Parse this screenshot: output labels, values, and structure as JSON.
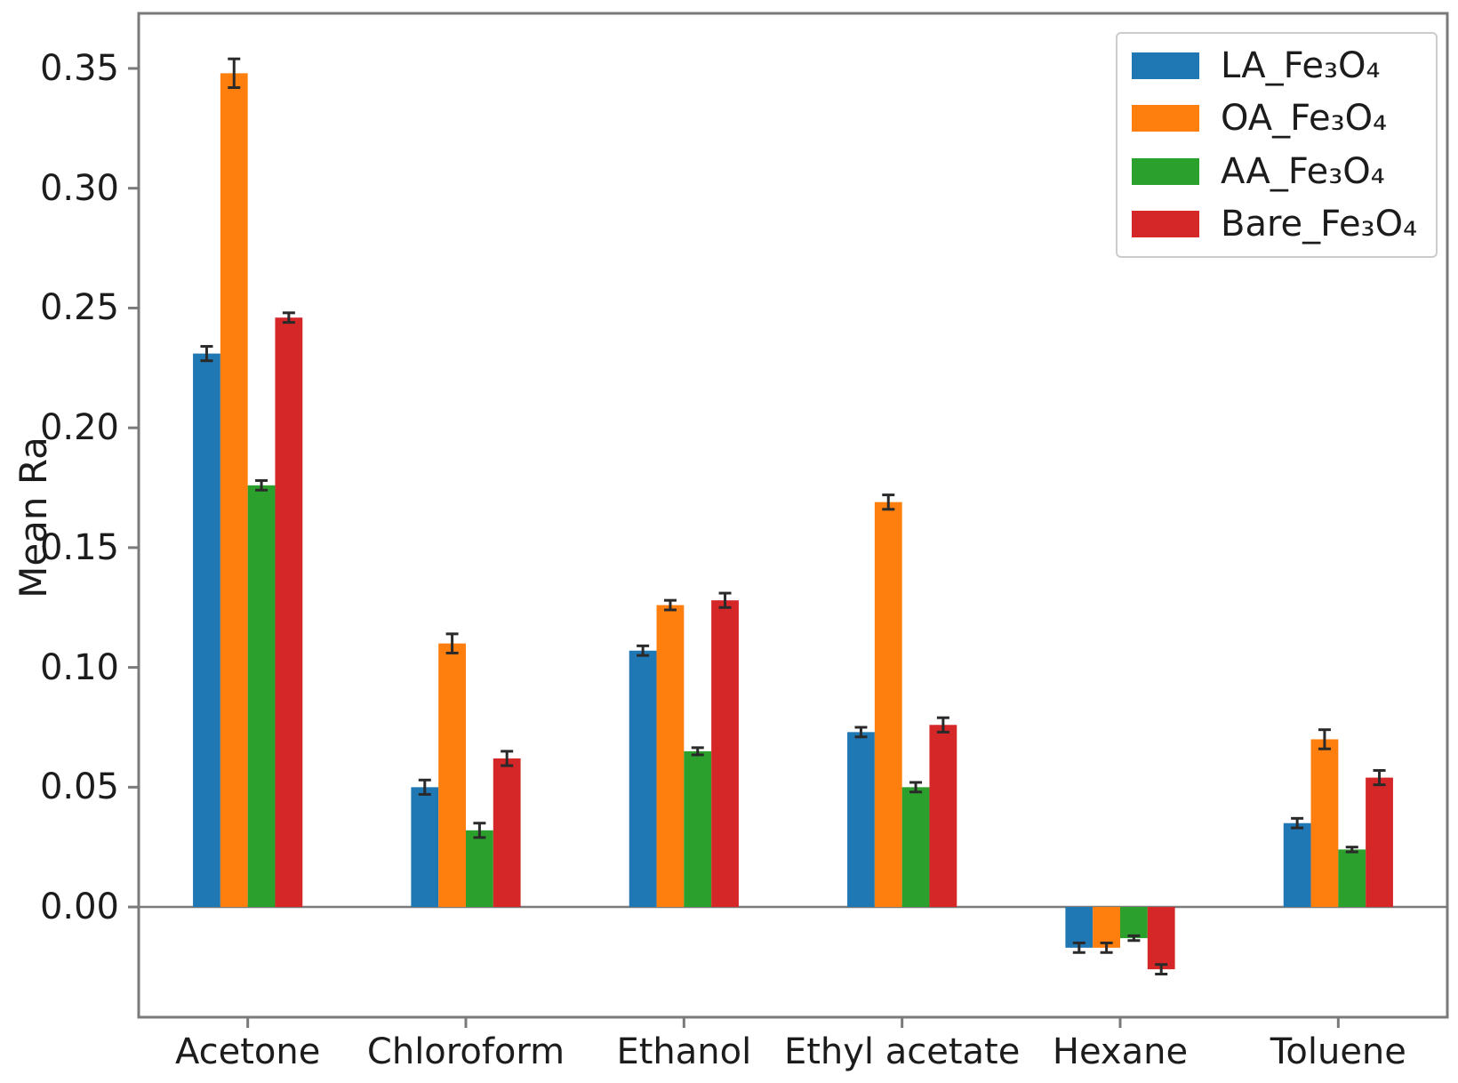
{
  "chart_data": {
    "type": "bar",
    "title": "",
    "xlabel": "",
    "ylabel": "Mean Ra",
    "categories": [
      "Acetone",
      "Chloroform",
      "Ethanol",
      "Ethyl acetate",
      "Hexane",
      "Toluene"
    ],
    "series": [
      {
        "name": "LA_Fe₃O₄",
        "color": "#1f77b4",
        "values": [
          0.231,
          0.05,
          0.107,
          0.073,
          -0.017,
          0.035
        ],
        "errors": [
          0.003,
          0.003,
          0.002,
          0.002,
          0.002,
          0.002
        ]
      },
      {
        "name": "OA_Fe₃O₄",
        "color": "#ff7f0e",
        "values": [
          0.348,
          0.11,
          0.126,
          0.169,
          -0.017,
          0.07
        ],
        "errors": [
          0.006,
          0.004,
          0.002,
          0.003,
          0.002,
          0.004
        ]
      },
      {
        "name": "AA_Fe₃O₄",
        "color": "#2ca02c",
        "values": [
          0.176,
          0.032,
          0.065,
          0.05,
          -0.013,
          0.024
        ],
        "errors": [
          0.002,
          0.003,
          0.0015,
          0.002,
          0.001,
          0.001
        ]
      },
      {
        "name": "Bare_Fe₃O₄",
        "color": "#d62728",
        "values": [
          0.246,
          0.062,
          0.128,
          0.076,
          -0.026,
          0.054
        ],
        "errors": [
          0.002,
          0.003,
          0.003,
          0.003,
          0.002,
          0.003
        ]
      }
    ],
    "yticks": [
      0.0,
      0.05,
      0.1,
      0.15,
      0.2,
      0.25,
      0.3,
      0.35
    ],
    "ylim": [
      -0.046,
      0.373
    ],
    "grid": false,
    "zero_line": true,
    "error_bars": true,
    "legend_position": "upper right",
    "axis_color": "#7a7a7a",
    "errorbar_color": "#2a2a2a"
  }
}
